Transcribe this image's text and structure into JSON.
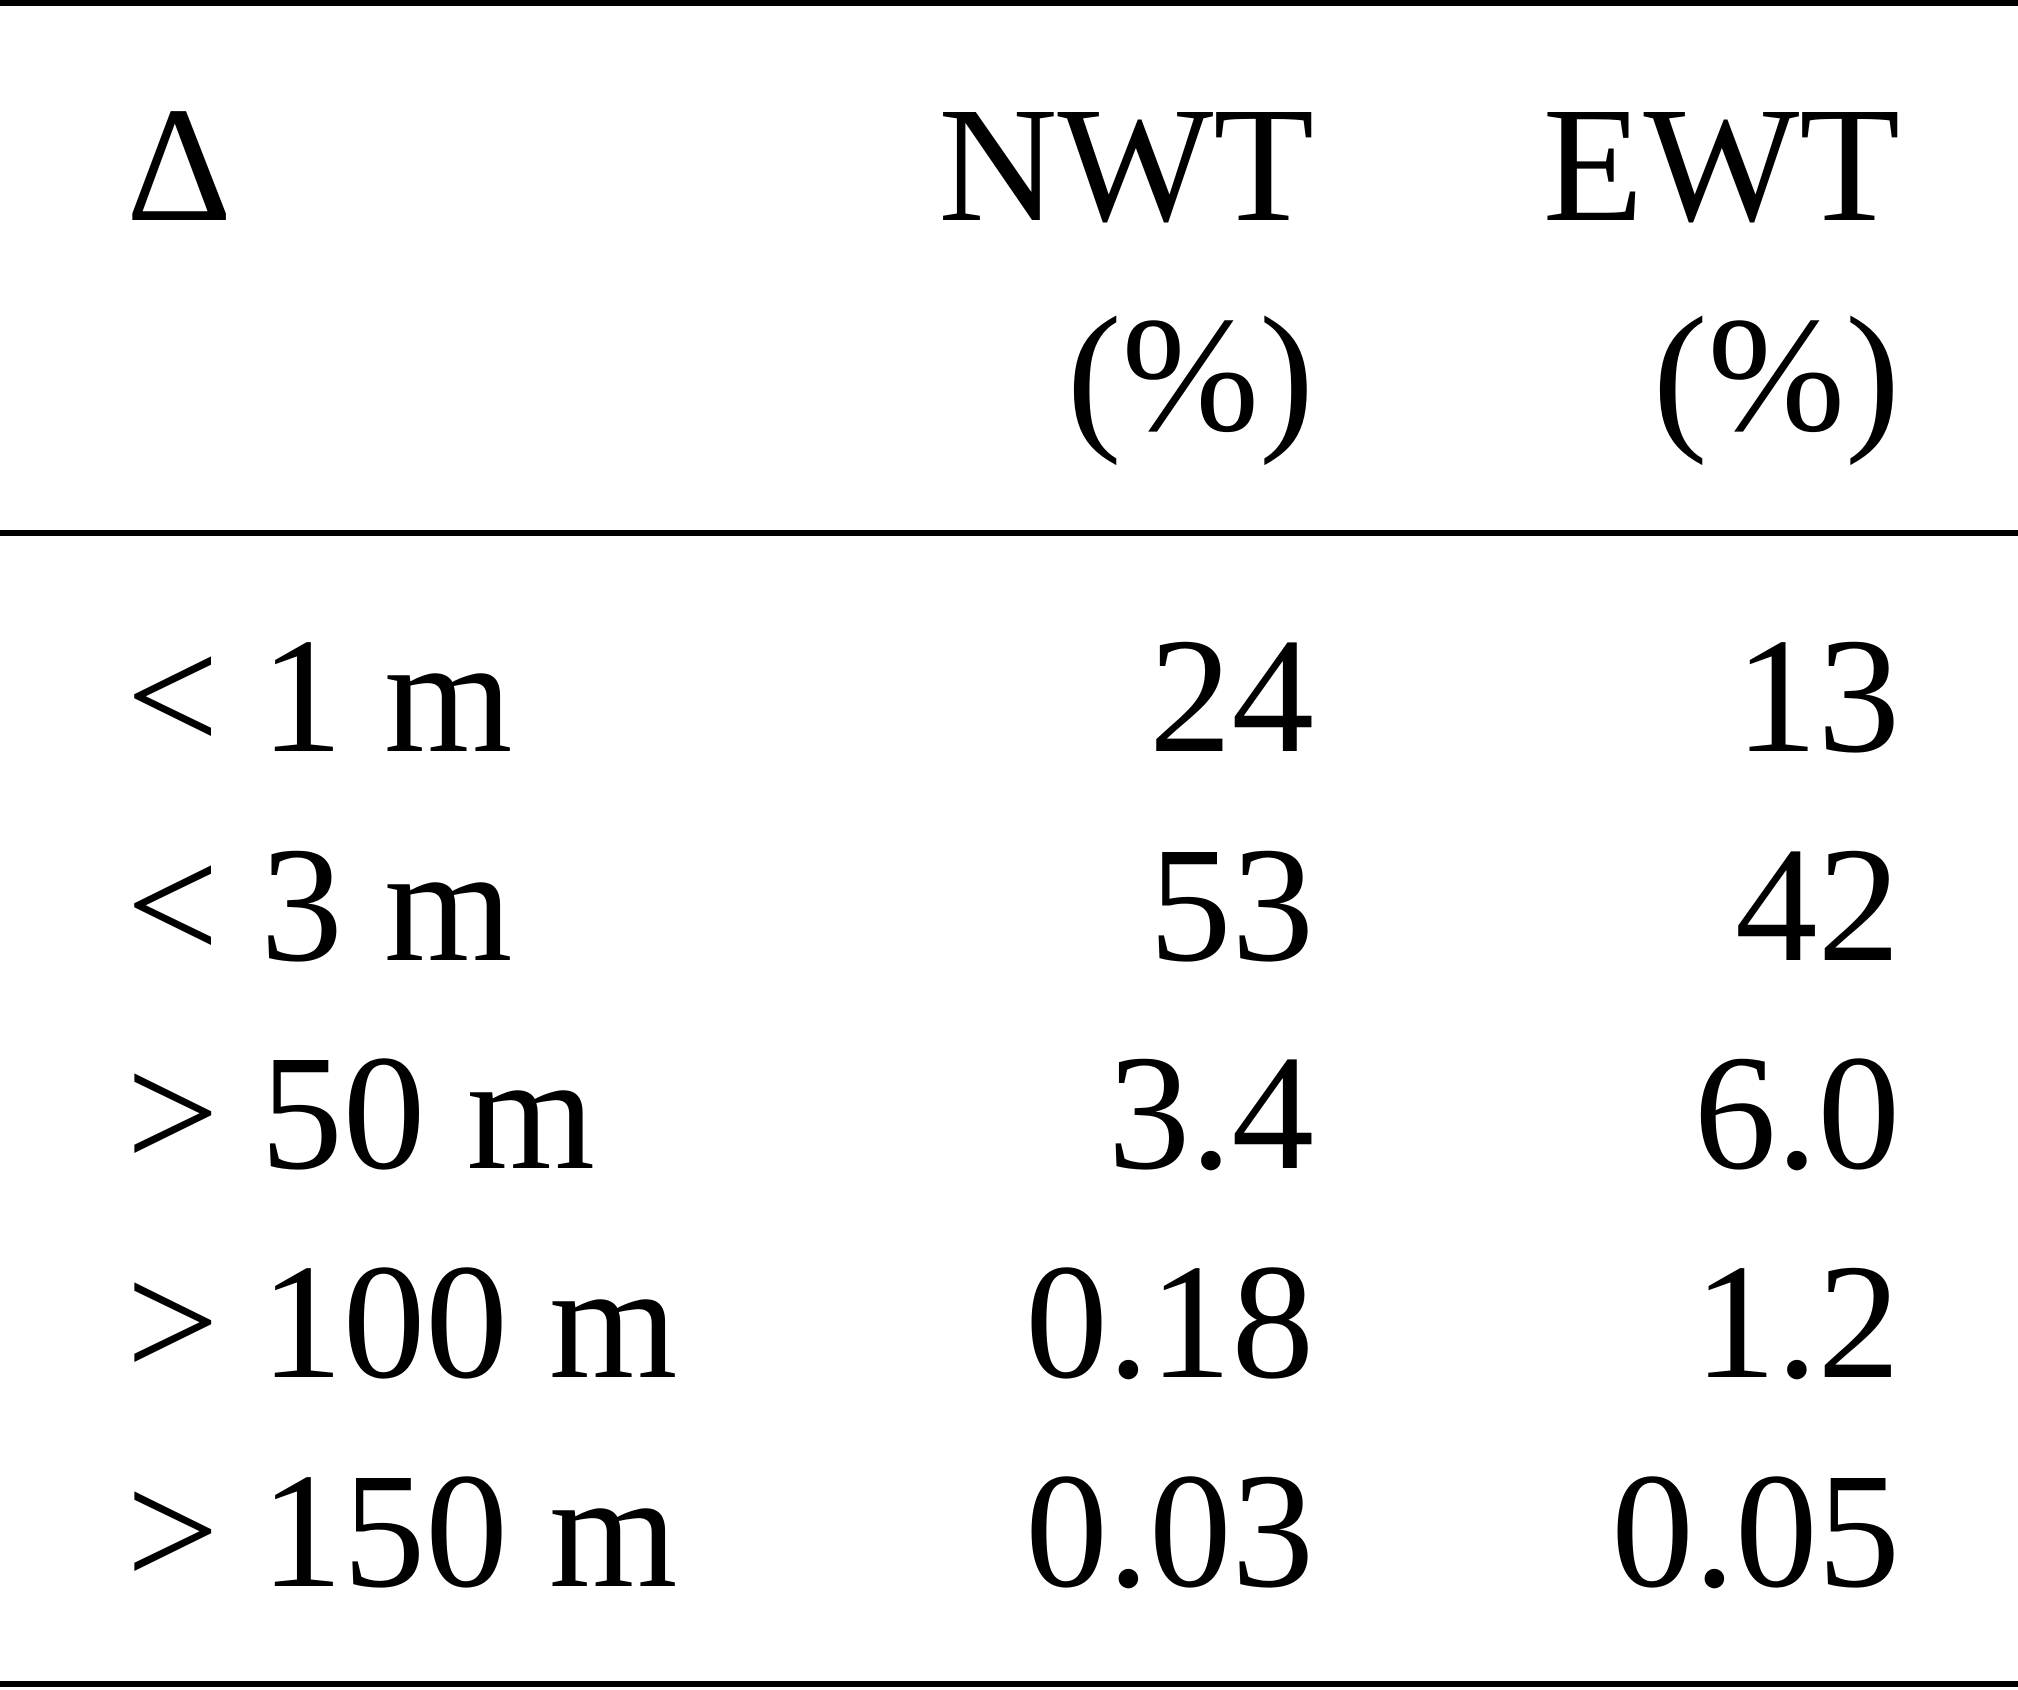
{
  "table": {
    "header": {
      "col0": "Δ",
      "col1_line1": "NWT",
      "col1_line2": "(%)",
      "col2_line1": "EWT",
      "col2_line2": "(%)"
    },
    "rows": [
      {
        "delta": "< 1 m",
        "nwt": "24",
        "ewt": "13"
      },
      {
        "delta": "< 3 m",
        "nwt": "53",
        "ewt": "42"
      },
      {
        "delta": "> 50 m",
        "nwt": "3.4",
        "ewt": "6.0"
      },
      {
        "delta": "> 100 m",
        "nwt": "0.18",
        "ewt": "1.2"
      },
      {
        "delta": "> 150 m",
        "nwt": "0.03",
        "ewt": "0.05"
      }
    ]
  }
}
